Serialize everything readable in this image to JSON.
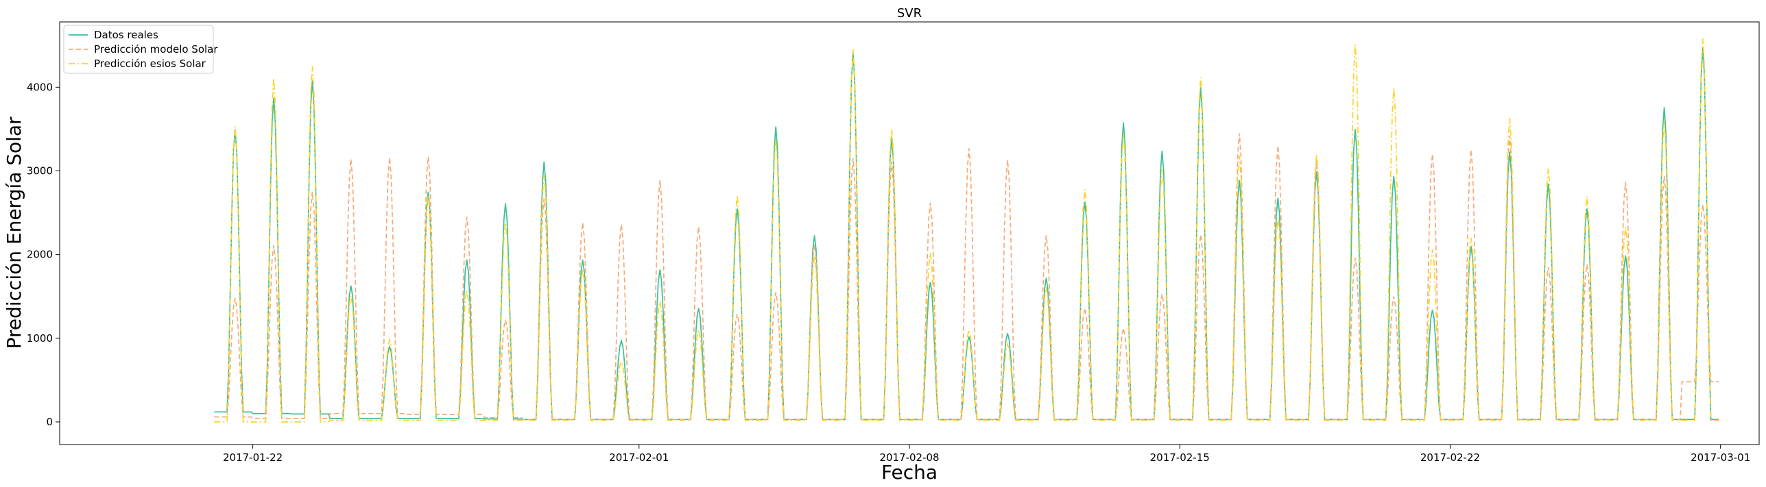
{
  "chart_data": {
    "type": "line",
    "title": "SVR",
    "xlabel": "Fecha",
    "ylabel": "Predicción Energía Solar",
    "xlim": [
      "2017-01-17",
      "2017-03-02"
    ],
    "ylim": [
      -270,
      4780
    ],
    "yticks": [
      0,
      1000,
      2000,
      3000,
      4000
    ],
    "xticks": [
      "2017-01-22",
      "2017-02-01",
      "2017-02-08",
      "2017-02-15",
      "2017-02-22",
      "2017-03-01"
    ],
    "grid": false,
    "legend_position": "top-left",
    "days": [
      "2017-01-21",
      "2017-01-22",
      "2017-01-23",
      "2017-01-24",
      "2017-01-25",
      "2017-01-26",
      "2017-01-27",
      "2017-01-28",
      "2017-01-29",
      "2017-01-30",
      "2017-01-31",
      "2017-02-01",
      "2017-02-02",
      "2017-02-03",
      "2017-02-04",
      "2017-02-05",
      "2017-02-06",
      "2017-02-07",
      "2017-02-08",
      "2017-02-09",
      "2017-02-10",
      "2017-02-11",
      "2017-02-12",
      "2017-02-13",
      "2017-02-14",
      "2017-02-15",
      "2017-02-16",
      "2017-02-17",
      "2017-02-18",
      "2017-02-19",
      "2017-02-20",
      "2017-02-21",
      "2017-02-22",
      "2017-02-23",
      "2017-02-24",
      "2017-02-25",
      "2017-02-26",
      "2017-02-27",
      "2017-02-28"
    ],
    "series": [
      {
        "name": "Datos reales",
        "color": "#3cbf98",
        "dash": "solid",
        "daily_peak": [
          3500,
          3870,
          4080,
          1630,
          900,
          2750,
          1940,
          2610,
          3110,
          1940,
          970,
          1820,
          1360,
          2550,
          3530,
          2230,
          4420,
          3400,
          1670,
          1020,
          1060,
          1720,
          2630,
          3580,
          3240,
          4000,
          2890,
          2680,
          2990,
          3500,
          2940,
          1340,
          2100,
          3230,
          2850,
          2550,
          1990,
          3760,
          4480
        ],
        "daily_base": [
          120,
          100,
          95,
          40,
          40,
          40,
          40,
          35,
          30,
          30,
          30,
          30,
          30,
          30,
          30,
          30,
          30,
          30,
          30,
          30,
          30,
          30,
          30,
          30,
          30,
          30,
          30,
          30,
          30,
          30,
          30,
          30,
          30,
          30,
          30,
          30,
          30,
          30,
          30
        ]
      },
      {
        "name": "Predicción modelo Solar",
        "color": "#f4ab7a",
        "dash": "dashed",
        "daily_peak": [
          1480,
          2110,
          2750,
          3140,
          3160,
          3170,
          2450,
          1220,
          2670,
          2380,
          2360,
          2890,
          2330,
          1290,
          1550,
          2120,
          3150,
          3110,
          2620,
          3270,
          3130,
          2230,
          1360,
          1120,
          1530,
          2240,
          3450,
          3300,
          3130,
          1960,
          1500,
          3200,
          3250,
          3420,
          1850,
          1880,
          2870,
          2940,
          2600
        ],
        "daily_base": [
          60,
          40,
          40,
          100,
          100,
          90,
          90,
          50,
          30,
          30,
          30,
          30,
          30,
          30,
          30,
          30,
          30,
          30,
          30,
          30,
          30,
          30,
          30,
          30,
          30,
          30,
          30,
          30,
          30,
          30,
          30,
          30,
          30,
          30,
          30,
          30,
          30,
          30,
          480
        ]
      },
      {
        "name": "Predicción esios Solar",
        "color": "#ffd21f",
        "dash": "dashdot",
        "daily_peak": [
          3530,
          4110,
          4250,
          1510,
          980,
          2710,
          1570,
          2380,
          2950,
          1830,
          720,
          1440,
          1100,
          2710,
          3380,
          1980,
          4450,
          3500,
          2020,
          1100,
          930,
          1610,
          2780,
          3440,
          3020,
          4120,
          3180,
          2440,
          3200,
          4510,
          3990,
          2060,
          2200,
          3630,
          3030,
          2700,
          2330,
          3600,
          4580
        ],
        "daily_base": [
          0,
          0,
          0,
          20,
          20,
          20,
          20,
          20,
          20,
          20,
          20,
          20,
          20,
          20,
          20,
          20,
          20,
          20,
          20,
          20,
          20,
          20,
          20,
          20,
          20,
          20,
          20,
          20,
          20,
          20,
          20,
          20,
          20,
          20,
          20,
          20,
          20,
          20,
          20
        ]
      }
    ]
  }
}
